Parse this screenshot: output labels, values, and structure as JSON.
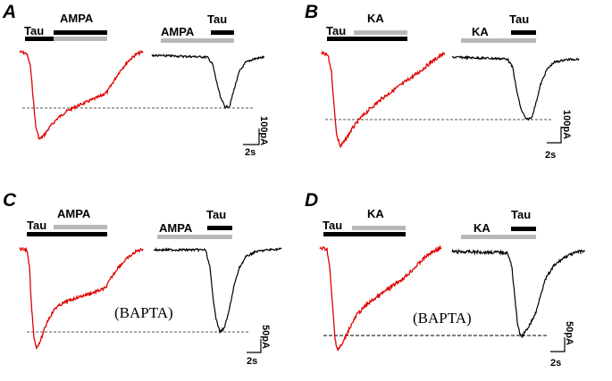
{
  "colors": {
    "background": "#ffffff",
    "drug_a_trace": "#e00000",
    "drug_b_trace": "#000000",
    "tau_bar": "#000000",
    "agonist_bar": "#b8b8b8",
    "baseline": "#555555"
  },
  "panels": [
    {
      "letter": "A",
      "left_trace": {
        "bar1": "Tau",
        "bar2": "AMPA"
      },
      "right_trace": {
        "bar1": "AMPA",
        "bar2": "Tau"
      },
      "scale": {
        "amplitude": "100pA",
        "time": "2s"
      },
      "annotation": ""
    },
    {
      "letter": "B",
      "left_trace": {
        "bar1": "Tau",
        "bar2": "KA"
      },
      "right_trace": {
        "bar1": "KA",
        "bar2": "Tau"
      },
      "scale": {
        "amplitude": "100pA",
        "time": "2s"
      },
      "annotation": ""
    },
    {
      "letter": "C",
      "left_trace": {
        "bar1": "Tau",
        "bar2": "AMPA"
      },
      "right_trace": {
        "bar1": "AMPA",
        "bar2": "Tau"
      },
      "scale": {
        "amplitude": "50pA",
        "time": "2s"
      },
      "annotation": "(BAPTA)"
    },
    {
      "letter": "D",
      "left_trace": {
        "bar1": "Tau",
        "bar2": "KA"
      },
      "right_trace": {
        "bar1": "KA",
        "bar2": "Tau"
      },
      "scale": {
        "amplitude": "50pA",
        "time": "2s"
      },
      "annotation": "(BAPTA)"
    }
  ]
}
